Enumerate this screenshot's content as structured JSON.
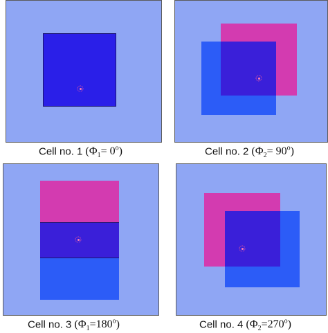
{
  "figure": {
    "cells": [
      {
        "label": "Cell no. 1",
        "phi_symbol": "Φ",
        "phi_index": "1",
        "eq": "= 0",
        "deg": "o"
      },
      {
        "label": "Cell no. 2",
        "phi_symbol": "Φ",
        "phi_index": "2",
        "eq": "= 90",
        "deg": "o"
      },
      {
        "label": "Cell no. 3",
        "phi_symbol": "Φ",
        "phi_index": "1",
        "eq": "=180",
        "deg": "o"
      },
      {
        "label": "Cell no. 4",
        "phi_symbol": "Φ",
        "phi_index": "2",
        "eq": "=270",
        "deg": "o"
      }
    ]
  },
  "colors": {
    "background": "#8fa6f4",
    "square_blue": "#2c5cf7",
    "square_dark": "#2a1fe8",
    "square_magenta": "#d33bb0",
    "center_dot": "#ff7ab8"
  }
}
